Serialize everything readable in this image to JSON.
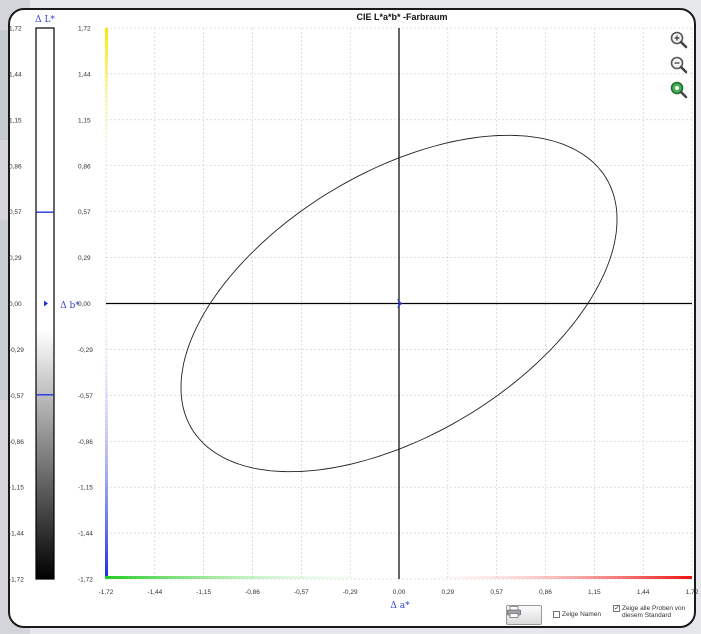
{
  "chart_data": [
    {
      "type": "bar",
      "ylabel": "Δ L*",
      "ylim": [
        -1.72,
        1.72
      ],
      "y_ticks": [
        "1,72",
        "1,44",
        "1,15",
        "0,86",
        "0,57",
        "0,29",
        "0,00",
        "-0,29",
        "-0,57",
        "-0,86",
        "-1,15",
        "-1,44",
        "-1,72"
      ],
      "tolerance_lines": [
        0.57,
        -0.57
      ],
      "marker_value": 0.0
    },
    {
      "type": "scatter",
      "title": "CIE L*a*b* -Farbraum",
      "xlabel": "Δ a*",
      "ylabel": "Δ b*",
      "xlim": [
        -1.72,
        1.72
      ],
      "ylim": [
        -1.72,
        1.72
      ],
      "x_ticks": [
        "-1,72",
        "-1,44",
        "-1,15",
        "-0,86",
        "-0,57",
        "-0,29",
        "0,00",
        "0,29",
        "0,57",
        "0,86",
        "1,15",
        "1,44",
        "1,72"
      ],
      "y_ticks": [
        "1,72",
        "1,44",
        "1,15",
        "0,86",
        "0,57",
        "0,29",
        "0,00",
        "-0,29",
        "-0,57",
        "-0,86",
        "-1,15",
        "-1,44",
        "-1,72"
      ],
      "grid": true,
      "ellipse": {
        "center": [
          0.0,
          0.0
        ],
        "x_range": [
          -1.28,
          1.28
        ],
        "y_range": [
          -1.05,
          1.05
        ],
        "orientation": "rising to the right"
      },
      "points": [
        {
          "x": 0.0,
          "y": 0.0
        }
      ]
    }
  ],
  "controls": {
    "zoom_in": "zoom-in-icon",
    "zoom_out": "zoom-out-icon",
    "zoom_reset": "zoom-fit-icon",
    "print": "printer-icon",
    "show_names_label": "Zeige Namen",
    "show_names_checked": false,
    "show_all_label_1": "Zeige alle Proben von",
    "show_all_label_2": "diesem Standard",
    "show_all_checked": true
  }
}
